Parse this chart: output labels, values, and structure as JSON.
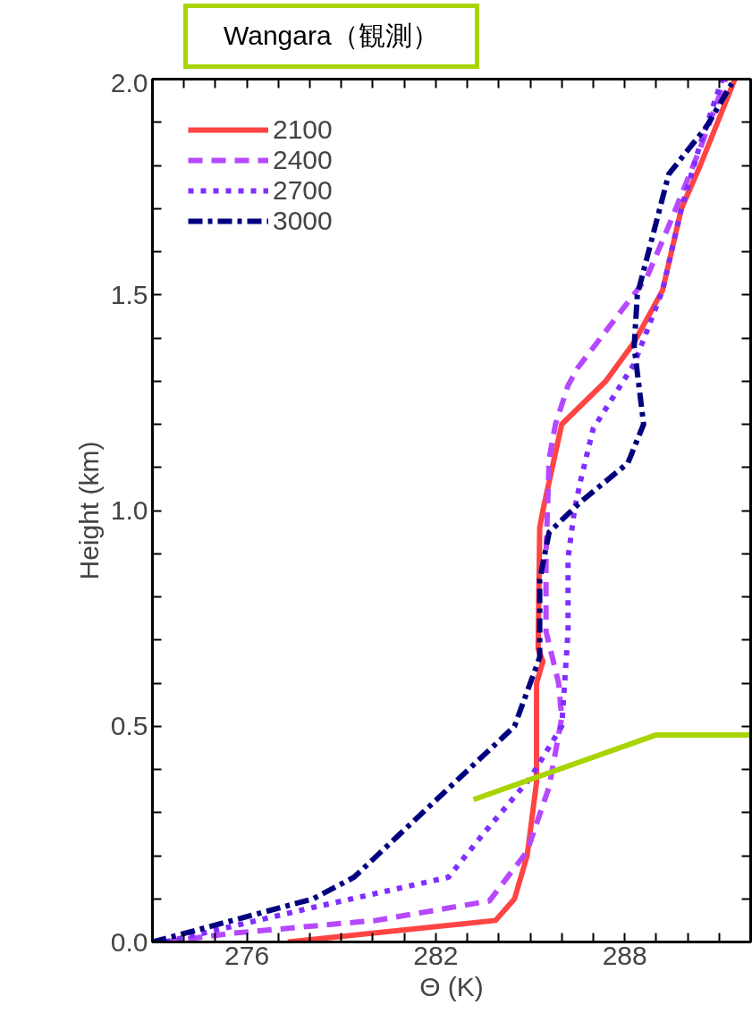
{
  "chart_data": {
    "type": "line",
    "title": "Wangara（観測）",
    "xlabel": "Θ (K)",
    "ylabel": "Height (km)",
    "xlim": [
      273,
      292
    ],
    "ylim": [
      0,
      2.0
    ],
    "xticks": [
      {
        "value": 273,
        "label": null
      },
      {
        "value": 274,
        "label": null
      },
      {
        "value": 275,
        "label": null
      },
      276,
      {
        "value": 277,
        "label": null
      },
      {
        "value": 278,
        "label": null
      },
      {
        "value": 279,
        "label": null
      },
      {
        "value": 280,
        "label": null
      },
      {
        "value": 281,
        "label": null
      },
      282,
      {
        "value": 283,
        "label": null
      },
      {
        "value": 284,
        "label": null
      },
      {
        "value": 285,
        "label": null
      },
      {
        "value": 286,
        "label": null
      },
      {
        "value": 287,
        "label": null
      },
      288,
      {
        "value": 289,
        "label": null
      },
      {
        "value": 290,
        "label": null
      },
      {
        "value": 291,
        "label": null
      }
    ],
    "yticks": [
      {
        "value": 0,
        "label": "0.0"
      },
      {
        "value": 0.1,
        "label": null
      },
      {
        "value": 0.2,
        "label": null
      },
      {
        "value": 0.3,
        "label": null
      },
      {
        "value": 0.4,
        "label": null
      },
      0.5,
      {
        "value": 0.6,
        "label": null
      },
      {
        "value": 0.7,
        "label": null
      },
      {
        "value": 0.8,
        "label": null
      },
      {
        "value": 0.9,
        "label": null
      },
      {
        "value": 1,
        "label": "1.0"
      },
      {
        "value": 1.1,
        "label": null
      },
      {
        "value": 1.2,
        "label": null
      },
      {
        "value": 1.3,
        "label": null
      },
      {
        "value": 1.4,
        "label": null
      },
      1.5,
      {
        "value": 1.6,
        "label": null
      },
      {
        "value": 1.7,
        "label": null
      },
      {
        "value": 1.8,
        "label": null
      },
      {
        "value": 1.9,
        "label": null
      },
      {
        "value": 2,
        "label": "2.0"
      }
    ],
    "grid": false,
    "legend": "top left",
    "series": [
      {
        "name": "2100",
        "color": "#ff4444",
        "line_style": "solid",
        "x": [
          277.3,
          283.9,
          284.5,
          284.9,
          285.2,
          285.2,
          285.4,
          285.25,
          285.3,
          285.4,
          286.0,
          287.4,
          288.3,
          289.2,
          289.8,
          290.4,
          291.5
        ],
        "values": [
          0,
          0.05,
          0.1,
          0.2,
          0.37,
          0.6,
          0.65,
          0.68,
          0.96,
          1.0,
          1.2,
          1.3,
          1.39,
          1.51,
          1.7,
          1.8,
          2.0
        ]
      },
      {
        "name": "2400",
        "color": "#b648ff",
        "line_style": "dashed",
        "x": [
          273.4,
          275.5,
          280.1,
          283.7,
          284.9,
          285.6,
          286.0,
          285.9,
          285.5,
          285.5,
          285.6,
          285.8,
          286.2,
          286.5,
          288.7,
          289.4,
          290.4,
          291.2
        ],
        "values": [
          0,
          0.02,
          0.05,
          0.095,
          0.21,
          0.36,
          0.52,
          0.6,
          0.72,
          0.9,
          1.12,
          1.2,
          1.29,
          1.33,
          1.54,
          1.66,
          1.84,
          2.0
        ]
      },
      {
        "name": "2700",
        "color": "#7f2fff",
        "line_style": "dotted",
        "x": [
          273.4,
          278.1,
          282.4,
          283.5,
          285.0,
          286.0,
          286.2,
          286.2,
          286.4,
          286.6,
          287.0,
          288.3,
          289.2,
          289.8,
          290.4,
          291.1
        ],
        "values": [
          0,
          0.08,
          0.15,
          0.25,
          0.38,
          0.5,
          0.72,
          0.89,
          1.0,
          1.07,
          1.19,
          1.34,
          1.51,
          1.7,
          1.85,
          2.0
        ]
      },
      {
        "name": "3000",
        "color": "#00007f",
        "line_style": "dashdot",
        "x": [
          273.0,
          278.1,
          279.4,
          284.5,
          285.3,
          285.3,
          285.3,
          285.6,
          286.6,
          288.1,
          288.6,
          288.3,
          288.4,
          289.4,
          290.6,
          291.4
        ],
        "values": [
          0,
          0.1,
          0.15,
          0.5,
          0.66,
          0.75,
          0.84,
          0.95,
          1.02,
          1.11,
          1.2,
          1.38,
          1.5,
          1.78,
          1.89,
          1.99
        ]
      },
      {
        "color": "#a8d400",
        "line_style": "solid",
        "x": [
          283.2,
          289.0,
          292
        ],
        "values": [
          0.33,
          0.48,
          0.48
        ]
      }
    ]
  }
}
